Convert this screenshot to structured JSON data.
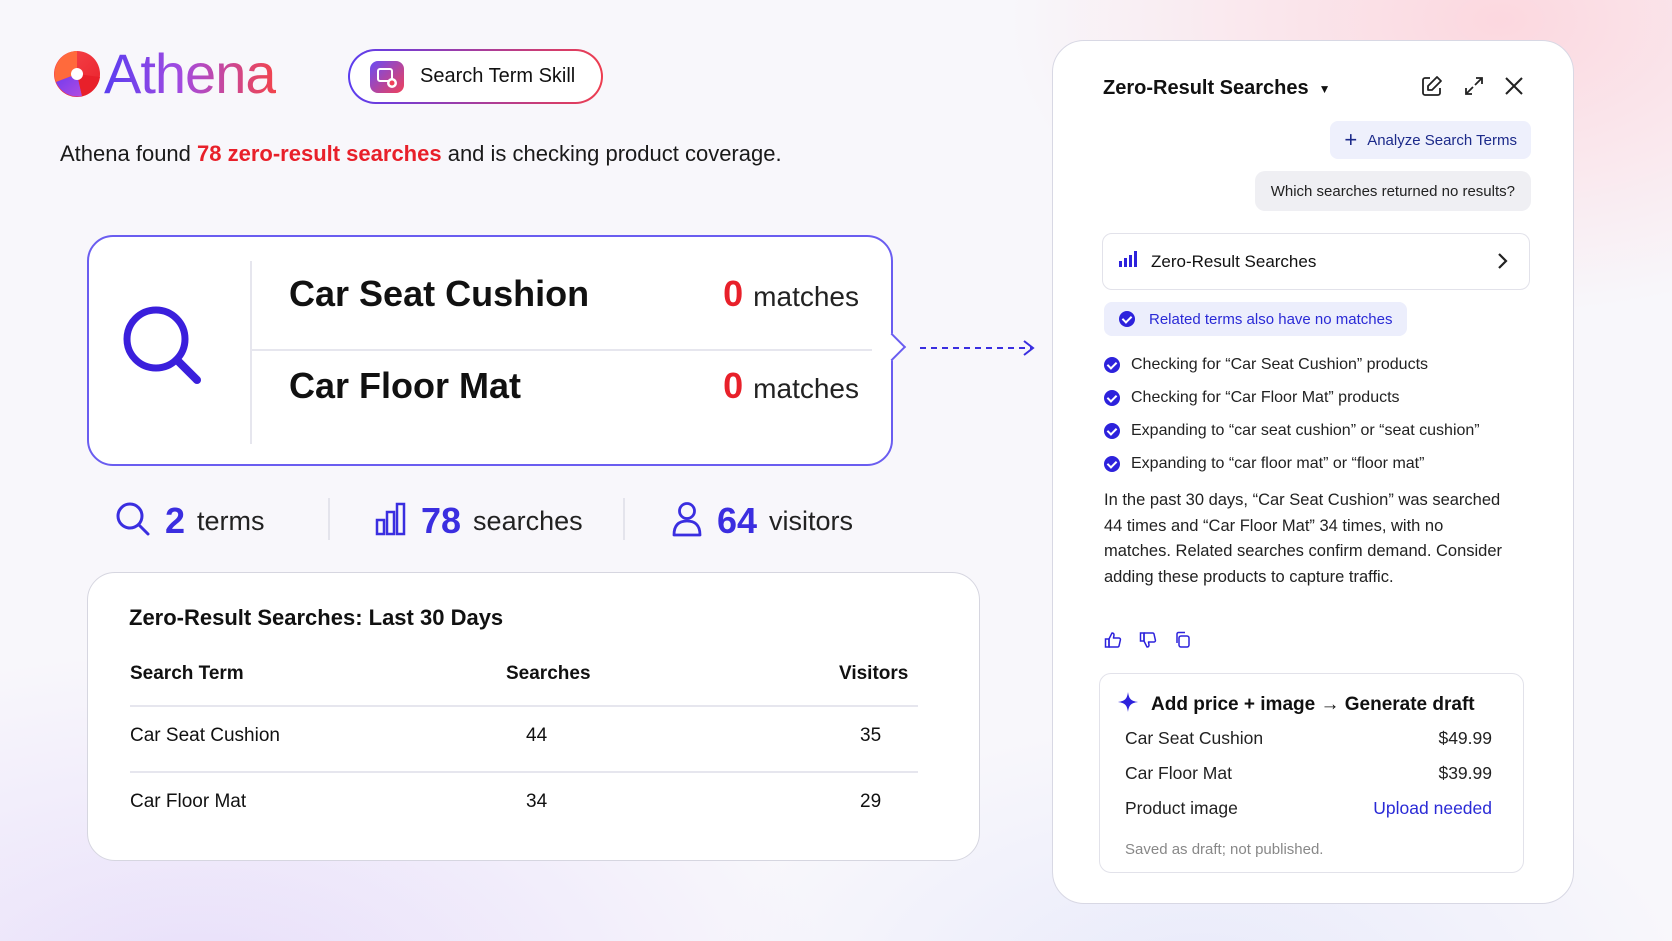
{
  "brand": {
    "name": "Athena"
  },
  "skill": {
    "label": "Search Term Skill"
  },
  "headline": {
    "prefix": "Athena found ",
    "highlight": "78 zero-result searches",
    "suffix": " and is checking product coverage."
  },
  "search_card": {
    "terms": [
      {
        "term": "Car Seat Cushion",
        "count": "0",
        "unit": "matches"
      },
      {
        "term": "Car Floor Mat",
        "count": "0",
        "unit": "matches"
      }
    ]
  },
  "stats": {
    "terms": {
      "value": "2",
      "label": "terms"
    },
    "searches": {
      "value": "78",
      "label": "searches"
    },
    "visitors": {
      "value": "64",
      "label": "visitors"
    }
  },
  "table": {
    "title": "Zero-Result Searches: Last 30 Days",
    "headers": [
      "Search Term",
      "Searches",
      "Visitors"
    ],
    "rows": [
      [
        "Car Seat Cushion",
        "44",
        "35"
      ],
      [
        "Car Floor Mat",
        "34",
        "29"
      ]
    ]
  },
  "panel": {
    "title": "Zero-Result Searches",
    "analyze_button": "Analyze Search Terms",
    "user_question": "Which searches returned no results?",
    "result_row": "Zero-Result Searches",
    "related_badge": "Related terms also have no matches",
    "checks": [
      "Checking for “Car Seat Cushion” products",
      "Checking for “Car Floor Mat” products",
      "Expanding to “car seat cushion” or “seat cushion”",
      "Expanding to “car floor mat” or “floor mat”"
    ],
    "summary": "In the past 30 days, “Car Seat Cushion” was searched 44 times and “Car Floor Mat” 34 times, with no matches. Related searches confirm demand. Consider adding these products to capture traffic.",
    "draft": {
      "title": "Add price + image → Generate draft",
      "rows": [
        {
          "label": "Car Seat Cushion",
          "value": "$49.99"
        },
        {
          "label": "Car Floor Mat",
          "value": "$39.99"
        },
        {
          "label": "Product image",
          "value": "Upload needed"
        }
      ],
      "footer": "Saved as draft; not published."
    }
  },
  "icons": [
    "athena-logo-icon",
    "skill-icon",
    "search-icon",
    "arrow-icon",
    "bar-chart-icon",
    "user-icon",
    "edit-icon",
    "expand-icon",
    "close-icon",
    "chevron-right-icon",
    "check-icon",
    "thumbs-up-icon",
    "thumbs-down-icon",
    "copy-icon",
    "sparkle-icon"
  ],
  "colors": {
    "accent": "#3b2ee0",
    "alert": "#e8202a",
    "brand_gradient_start": "#5a3df0",
    "brand_gradient_end": "#f2444c"
  }
}
